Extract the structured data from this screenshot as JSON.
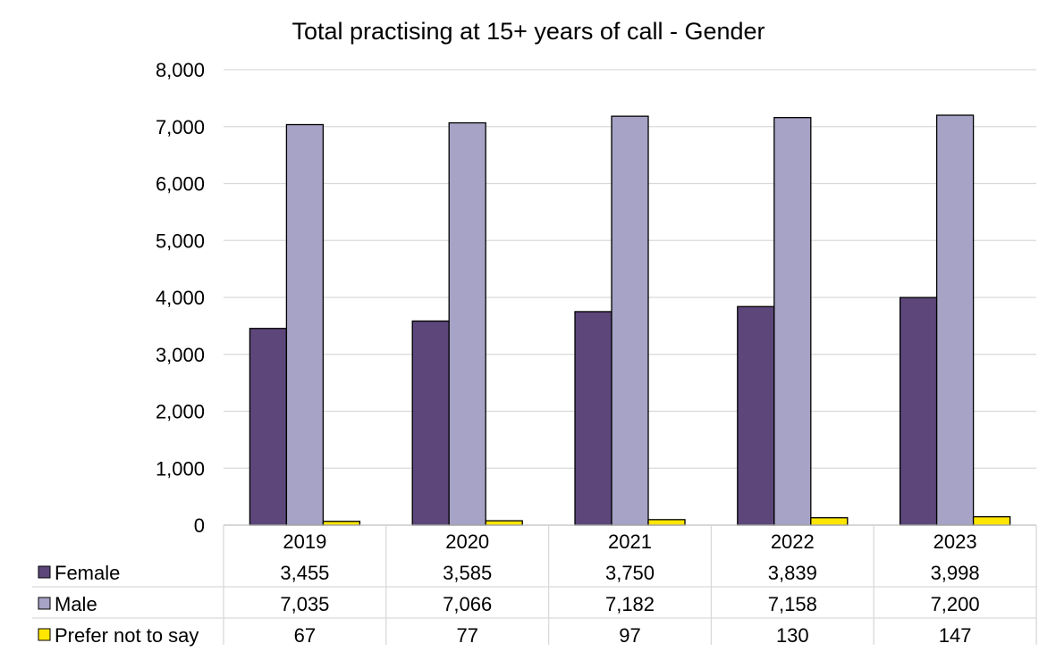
{
  "chart_data": {
    "type": "bar",
    "title": "Total practising at 15+ years of call - Gender",
    "xlabel": "",
    "ylabel": "",
    "ylim": [
      0,
      8000
    ],
    "yticks": [
      0,
      1000,
      2000,
      3000,
      4000,
      5000,
      6000,
      7000,
      8000
    ],
    "ytick_labels": [
      "0",
      "1,000",
      "2,000",
      "3,000",
      "4,000",
      "5,000",
      "6,000",
      "7,000",
      "8,000"
    ],
    "grid": true,
    "legend": "data-table-below",
    "categories": [
      "2019",
      "2020",
      "2021",
      "2022",
      "2023"
    ],
    "series": [
      {
        "name": "Female",
        "color": "#5c467a",
        "values": [
          3455,
          3585,
          3750,
          3839,
          3998
        ],
        "labels": [
          "3,455",
          "3,585",
          "3,750",
          "3,839",
          "3,998"
        ]
      },
      {
        "name": "Male",
        "color": "#a6a3c6",
        "values": [
          7035,
          7066,
          7182,
          7158,
          7200
        ],
        "labels": [
          "7,035",
          "7,066",
          "7,182",
          "7,158",
          "7,200"
        ]
      },
      {
        "name": "Prefer not to say",
        "color": "#ffe600",
        "values": [
          67,
          77,
          97,
          130,
          147
        ],
        "labels": [
          "67",
          "77",
          "97",
          "130",
          "147"
        ]
      }
    ]
  }
}
